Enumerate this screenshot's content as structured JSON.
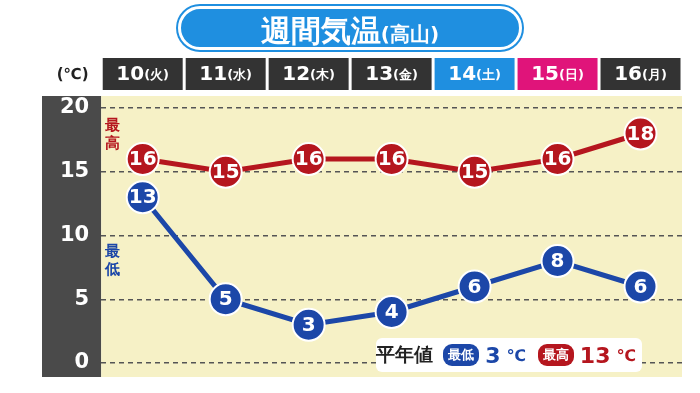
{
  "chart_data": {
    "type": "line",
    "title": "週間気温(高山)",
    "y_label": "(℃)",
    "categories": [
      "10(火)",
      "11(水)",
      "12(木)",
      "13(金)",
      "14(土)",
      "15(日)",
      "16(月)"
    ],
    "series": [
      {
        "name": "最高",
        "color": "#b5161e",
        "values": [
          16,
          15,
          16,
          16,
          15,
          16,
          18
        ]
      },
      {
        "name": "最低",
        "color": "#1c47a8",
        "values": [
          13,
          5,
          3,
          4,
          6,
          8,
          6
        ]
      }
    ],
    "ylim": [
      0,
      20
    ],
    "yticks": [
      0,
      5,
      10,
      15,
      20
    ],
    "grid": true,
    "data_labels": true,
    "marker": "circle",
    "annotations": [
      {
        "label": "平年値",
        "items": [
          {
            "name": "最低",
            "value": 3,
            "unit": "℃",
            "color": "#1c47a8"
          },
          {
            "name": "最高",
            "value": 13,
            "unit": "℃",
            "color": "#b5161e"
          }
        ]
      }
    ]
  }
}
